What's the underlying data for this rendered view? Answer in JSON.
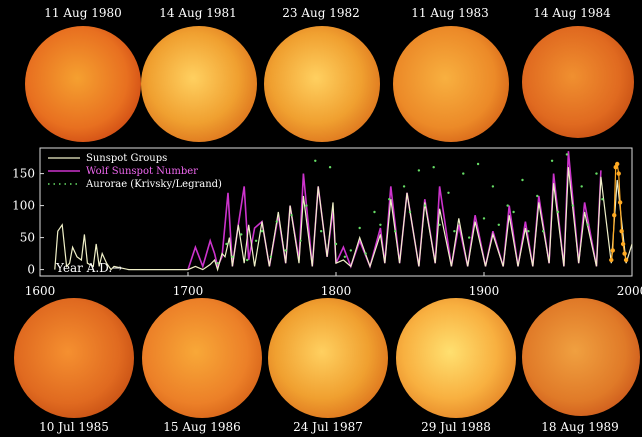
{
  "top_row": [
    {
      "date": "11 Aug 1980"
    },
    {
      "date": "14 Aug 1981"
    },
    {
      "date": "23 Aug 1982"
    },
    {
      "date": "11 Aug 1983"
    },
    {
      "date": "14 Aug 1984"
    }
  ],
  "bottom_row": [
    {
      "date": "10 Jul 1985"
    },
    {
      "date": "15 Aug 1986"
    },
    {
      "date": "24 Jul 1987"
    },
    {
      "date": "29 Jul 1988"
    },
    {
      "date": "18 Aug 1989"
    }
  ],
  "colors": {
    "sunspot_groups": "#f0f0c8",
    "wolf": "#cc33cc",
    "aurorae": "#66dd66",
    "recent_points": "#ffaa22",
    "background": "#000000"
  },
  "chart_data": {
    "type": "line",
    "xlabel": "Year A.D.→",
    "xlim": [
      1600,
      2000
    ],
    "ylim": [
      -10,
      190
    ],
    "x_ticks": [
      1600,
      1700,
      1800,
      1900,
      2000
    ],
    "y_ticks": [
      0,
      50,
      100,
      150
    ],
    "legend_position": "top-left",
    "series": [
      {
        "name": "Sunspot Groups",
        "style": "line",
        "x": [
          1610,
          1612,
          1615,
          1618,
          1620,
          1622,
          1625,
          1628,
          1630,
          1632,
          1636,
          1638,
          1640,
          1642,
          1645,
          1648,
          1650,
          1660,
          1680,
          1700,
          1705,
          1710,
          1715,
          1718,
          1720,
          1723,
          1725,
          1728,
          1730,
          1734,
          1738,
          1741,
          1745,
          1750,
          1755,
          1761,
          1766,
          1769,
          1775,
          1778,
          1784,
          1788,
          1794,
          1798,
          1800,
          1805,
          1810,
          1816,
          1823,
          1830,
          1833,
          1837,
          1843,
          1848,
          1856,
          1860,
          1867,
          1870,
          1878,
          1883,
          1889,
          1894,
          1901,
          1906,
          1913,
          1917,
          1923,
          1928,
          1933,
          1937,
          1944,
          1947,
          1954,
          1957,
          1964,
          1968,
          1976,
          1979,
          1986,
          1990,
          1996,
          2000
        ],
        "values": [
          0,
          60,
          70,
          5,
          10,
          35,
          20,
          15,
          55,
          10,
          5,
          40,
          5,
          25,
          10,
          0,
          5,
          0,
          0,
          0,
          5,
          0,
          8,
          15,
          0,
          25,
          20,
          50,
          5,
          70,
          10,
          70,
          5,
          75,
          5,
          90,
          10,
          100,
          10,
          115,
          5,
          130,
          20,
          105,
          10,
          15,
          5,
          50,
          5,
          55,
          10,
          110,
          10,
          120,
          5,
          105,
          10,
          95,
          5,
          80,
          5,
          75,
          5,
          55,
          5,
          85,
          5,
          65,
          5,
          105,
          10,
          135,
          5,
          160,
          10,
          90,
          5,
          145,
          10,
          140,
          10,
          40
        ]
      },
      {
        "name": "Wolf Sunspot Number",
        "style": "line",
        "x": [
          1700,
          1705,
          1710,
          1715,
          1718,
          1720,
          1723,
          1727,
          1730,
          1734,
          1738,
          1741,
          1745,
          1750,
          1755,
          1761,
          1766,
          1769,
          1775,
          1778,
          1784,
          1788,
          1794,
          1798,
          1800,
          1805,
          1810,
          1816,
          1823,
          1830,
          1833,
          1837,
          1843,
          1848,
          1856,
          1860,
          1867,
          1870,
          1878,
          1883,
          1889,
          1894,
          1901,
          1906,
          1913,
          1917,
          1923,
          1928,
          1933,
          1937,
          1944,
          1947,
          1954,
          1957,
          1964,
          1968,
          1976,
          1979
        ],
        "values": [
          0,
          35,
          5,
          45,
          25,
          5,
          20,
          120,
          5,
          70,
          130,
          15,
          65,
          75,
          5,
          85,
          10,
          100,
          15,
          150,
          5,
          130,
          20,
          95,
          10,
          35,
          5,
          45,
          5,
          65,
          10,
          130,
          10,
          120,
          5,
          110,
          10,
          130,
          5,
          70,
          5,
          85,
          5,
          60,
          5,
          100,
          5,
          75,
          5,
          115,
          10,
          150,
          5,
          185,
          10,
          105,
          5,
          155
        ]
      },
      {
        "name": "Aurorae (Krivsky/Legrand)",
        "style": "dots",
        "x": [
          1720,
          1726,
          1730,
          1736,
          1740,
          1746,
          1750,
          1756,
          1760,
          1766,
          1770,
          1776,
          1780,
          1786,
          1790,
          1796,
          1800,
          1806,
          1810,
          1816,
          1820,
          1826,
          1830,
          1836,
          1840,
          1846,
          1850,
          1856,
          1860,
          1866,
          1870,
          1876,
          1880,
          1886,
          1890,
          1896,
          1900,
          1906,
          1910,
          1916,
          1920,
          1926,
          1930,
          1936,
          1940,
          1946,
          1950,
          1956,
          1960,
          1966,
          1970,
          1976,
          1980
        ],
        "values": [
          10,
          40,
          20,
          55,
          15,
          45,
          60,
          20,
          75,
          30,
          85,
          45,
          100,
          170,
          60,
          160,
          40,
          20,
          30,
          65,
          25,
          90,
          70,
          110,
          60,
          130,
          90,
          155,
          100,
          160,
          70,
          120,
          60,
          150,
          50,
          165,
          80,
          130,
          70,
          100,
          90,
          140,
          60,
          115,
          60,
          170,
          90,
          180,
          100,
          130,
          70,
          150,
          110
        ]
      },
      {
        "name": "",
        "style": "points",
        "x": [
          1986,
          1987,
          1988,
          1989,
          1990,
          1991,
          1992,
          1993,
          1994,
          1995,
          1996
        ],
        "values": [
          15,
          30,
          85,
          160,
          165,
          150,
          105,
          60,
          40,
          25,
          15
        ]
      }
    ]
  }
}
